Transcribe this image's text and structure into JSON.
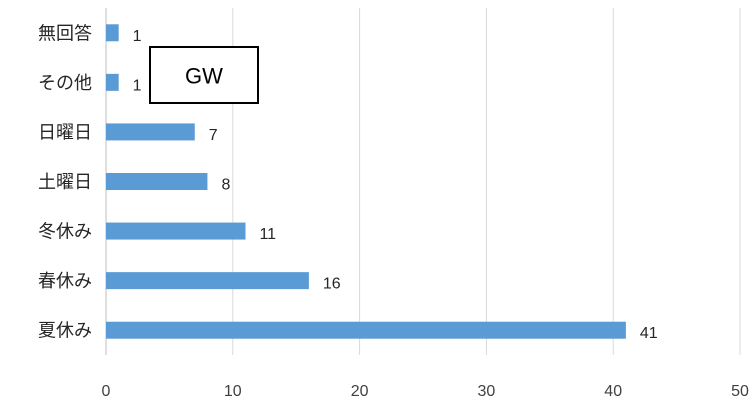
{
  "chart_data": {
    "type": "bar",
    "orientation": "horizontal",
    "categories": [
      "無回答",
      "その他",
      "日曜日",
      "土曜日",
      "冬休み",
      "春休み",
      "夏休み"
    ],
    "values": [
      1,
      1,
      7,
      8,
      11,
      16,
      41
    ],
    "xlim": [
      0,
      50
    ],
    "x_ticks": [
      0,
      10,
      20,
      30,
      40,
      50
    ],
    "grid": true,
    "bar_color": "#5b9bd5",
    "data_labels": true,
    "annotations": [
      {
        "text": "GW"
      }
    ]
  }
}
